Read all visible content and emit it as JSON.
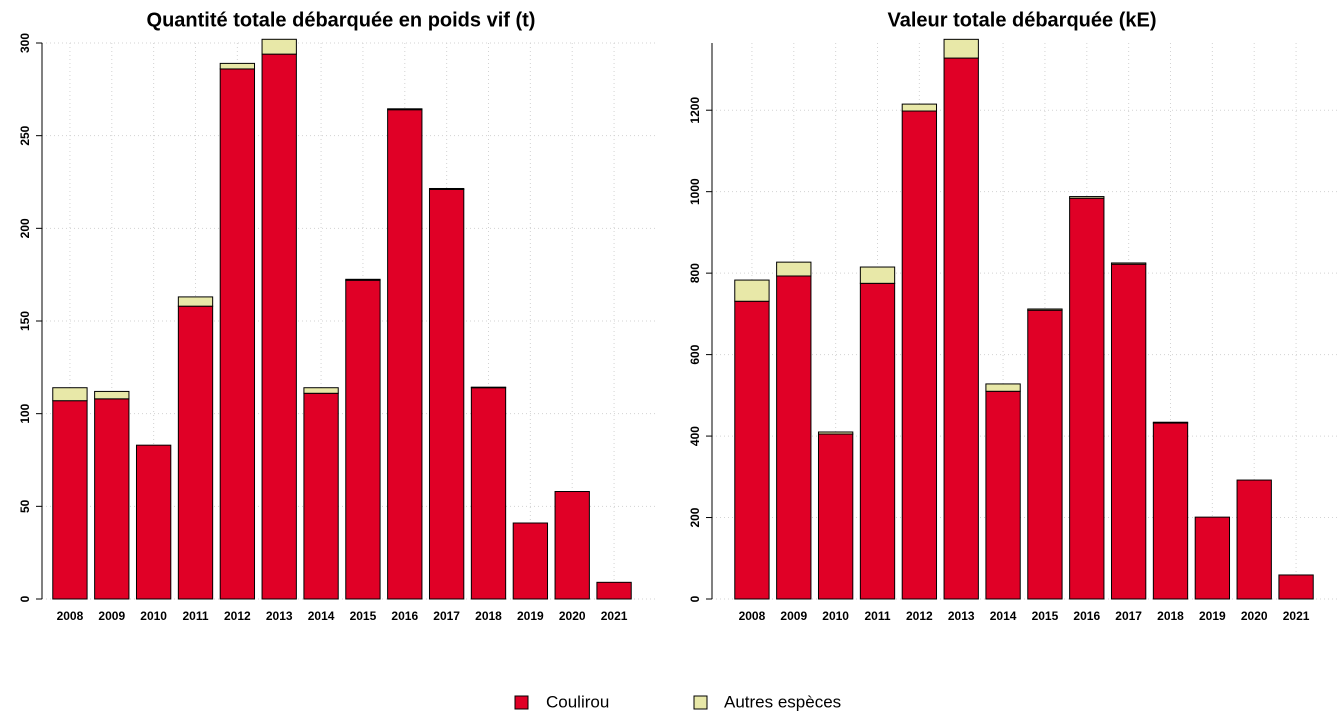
{
  "chart_data": [
    {
      "type": "bar",
      "stacked": true,
      "title": "Quantité totale débarquée en poids vif (t)",
      "categories": [
        "2008",
        "2009",
        "2010",
        "2011",
        "2012",
        "2013",
        "2014",
        "2015",
        "2016",
        "2017",
        "2018",
        "2019",
        "2020",
        "2021"
      ],
      "series": [
        {
          "name": "Coulirou",
          "color": "#e00026",
          "values": [
            107,
            108,
            83,
            158,
            286,
            294,
            111,
            172,
            264,
            221,
            114,
            41,
            58,
            9
          ]
        },
        {
          "name": "Autres espèces",
          "color": "#e8e8a8",
          "values": [
            7,
            4,
            0,
            5,
            3,
            8,
            3,
            0.5,
            0.5,
            0.5,
            0.3,
            0,
            0,
            0
          ]
        }
      ],
      "ylim": [
        0,
        300
      ],
      "yticks": [
        0,
        50,
        100,
        150,
        200,
        250,
        300
      ],
      "grid": true
    },
    {
      "type": "bar",
      "stacked": true,
      "title": "Valeur totale débarquée (kE)",
      "categories": [
        "2008",
        "2009",
        "2010",
        "2011",
        "2012",
        "2013",
        "2014",
        "2015",
        "2016",
        "2017",
        "2018",
        "2019",
        "2020",
        "2021"
      ],
      "series": [
        {
          "name": "Coulirou",
          "color": "#e00026",
          "values": [
            731,
            793,
            405,
            775,
            1198,
            1328,
            510,
            709,
            984,
            822,
            432,
            201,
            292,
            59
          ]
        },
        {
          "name": "Autres espèces",
          "color": "#e8e8a8",
          "values": [
            52,
            34,
            5,
            40,
            17,
            46,
            18,
            3,
            4,
            3,
            2,
            0,
            0,
            0
          ]
        }
      ],
      "ylim": [
        0,
        1365
      ],
      "yticks": [
        0,
        200,
        400,
        600,
        800,
        1000,
        1200
      ],
      "grid": true
    }
  ]
}
